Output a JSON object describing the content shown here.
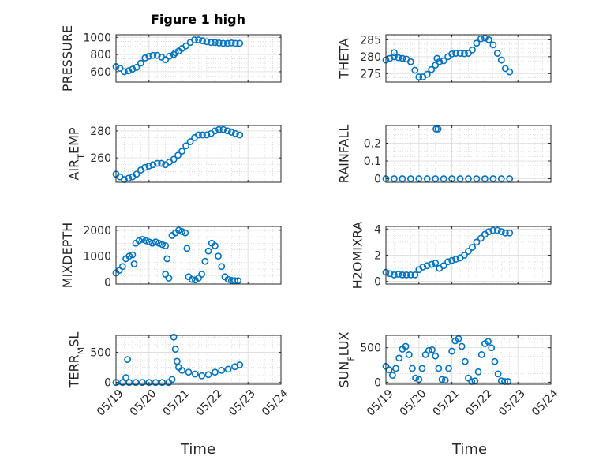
{
  "figure_title": "Figure 1 high",
  "colors": {
    "marker": "#0072BD",
    "axis": "#262626",
    "grid": "#c8c8c8"
  },
  "chart_data": [
    {
      "id": "pressure",
      "type": "scatter",
      "title": "Figure 1 high",
      "ylabel": "PRESSURE",
      "ylabel_sub": "",
      "xlim": [
        "05/19",
        "05/24"
      ],
      "ylim": [
        480,
        1030
      ],
      "yticks": [
        600,
        800,
        1000
      ],
      "yticklabels": [
        "600",
        "800",
        "1000"
      ],
      "x_days": [
        0,
        0.12,
        0.25,
        0.38,
        0.5,
        0.62,
        0.75,
        0.88,
        1.0,
        1.12,
        1.25,
        1.38,
        1.5,
        1.62,
        1.75,
        1.8,
        1.9,
        2.0,
        2.12,
        2.25,
        2.38,
        2.5,
        2.62,
        2.75,
        2.88,
        3.0,
        3.12,
        3.25,
        3.38,
        3.5,
        3.62,
        3.75
      ],
      "y": [
        660,
        640,
        600,
        610,
        630,
        650,
        700,
        760,
        780,
        790,
        790,
        770,
        740,
        780,
        800,
        820,
        840,
        870,
        900,
        940,
        970,
        970,
        960,
        950,
        940,
        940,
        935,
        930,
        930,
        935,
        930,
        930
      ]
    },
    {
      "id": "theta",
      "type": "scatter",
      "ylabel": "THETA",
      "ylabel_sub": "",
      "xlim": [
        "05/19",
        "05/24"
      ],
      "ylim": [
        272.5,
        286.5
      ],
      "yticks": [
        275,
        280,
        285
      ],
      "yticklabels": [
        "275",
        "280",
        "285"
      ],
      "x_days": [
        0,
        0.12,
        0.25,
        0.38,
        0.5,
        0.62,
        0.75,
        0.88,
        1.0,
        1.12,
        1.25,
        1.38,
        1.5,
        1.62,
        1.75,
        1.88,
        2.0,
        2.12,
        2.25,
        2.38,
        2.5,
        2.62,
        2.75,
        2.88,
        3.0,
        3.12,
        3.25,
        3.38,
        3.5,
        3.62,
        3.75
      ],
      "y": [
        279,
        279.5,
        280,
        279.7,
        279.5,
        279.3,
        278.5,
        276,
        274,
        274,
        274.8,
        276.2,
        277.5,
        278.5,
        278.8,
        280,
        280.8,
        281,
        281,
        280.9,
        281,
        282,
        284,
        285.3,
        285.5,
        285,
        283.5,
        281,
        279,
        276.5,
        275.5
      ],
      "outliers": [
        [
          0.25,
          281.2
        ],
        [
          1.55,
          279.5
        ]
      ]
    },
    {
      "id": "air_temp",
      "type": "scatter",
      "ylabel": "AIR",
      "ylabel_sub": "T",
      "ylabel_suffix": "EMP",
      "xlim": [
        "05/19",
        "05/24"
      ],
      "ylim": [
        242,
        284
      ],
      "yticks": [
        260,
        280
      ],
      "yticklabels": [
        "260",
        "280"
      ],
      "x_days": [
        0,
        0.12,
        0.25,
        0.38,
        0.5,
        0.62,
        0.75,
        0.88,
        1.0,
        1.12,
        1.25,
        1.38,
        1.5,
        1.62,
        1.75,
        1.88,
        2.0,
        2.12,
        2.25,
        2.38,
        2.5,
        2.62,
        2.75,
        2.88,
        3.0,
        3.12,
        3.25,
        3.38,
        3.5,
        3.62,
        3.75
      ],
      "y": [
        248,
        246,
        244,
        245,
        246,
        248,
        251,
        253,
        254,
        255,
        256,
        256,
        255,
        257,
        259,
        262,
        265,
        269,
        272,
        275,
        277,
        277,
        277,
        278,
        280,
        281,
        281,
        280,
        279,
        278,
        277
      ]
    },
    {
      "id": "rainfall",
      "type": "scatter",
      "ylabel": "RAINFALL",
      "ylabel_sub": "",
      "xlim": [
        "05/19",
        "05/24"
      ],
      "ylim": [
        -0.02,
        0.3
      ],
      "yticks": [
        0,
        0.1,
        0.2
      ],
      "yticklabels": [
        "0",
        "0.1",
        "0.2"
      ],
      "x_days": [
        0,
        0.25,
        0.5,
        0.75,
        1.0,
        1.25,
        1.5,
        1.75,
        2.0,
        2.25,
        2.5,
        2.75,
        3.0,
        3.25,
        3.5,
        3.75
      ],
      "y": [
        0,
        0,
        0,
        0,
        0,
        0,
        0,
        0,
        0,
        0,
        0,
        0,
        0,
        0,
        0,
        0
      ],
      "outliers": [
        [
          1.52,
          0.28
        ],
        [
          1.58,
          0.28
        ]
      ]
    },
    {
      "id": "mixdepth",
      "type": "scatter",
      "ylabel": "MIXDEPTH",
      "ylabel_sub": "",
      "xlim": [
        "05/19",
        "05/24"
      ],
      "ylim": [
        -80,
        2150
      ],
      "yticks": [
        0,
        1000,
        2000
      ],
      "yticklabels": [
        "0",
        "1000",
        "2000"
      ],
      "x_days": [
        0,
        0.1,
        0.2,
        0.3,
        0.4,
        0.5,
        0.6,
        0.7,
        0.8,
        0.9,
        1.0,
        1.1,
        1.2,
        1.3,
        1.4,
        1.5,
        1.7,
        1.8,
        1.9,
        2.0,
        2.1,
        2.2,
        2.3,
        2.4,
        2.5,
        2.6,
        2.7,
        2.8,
        2.9,
        3.0,
        3.1,
        3.2,
        3.3,
        3.4,
        3.5,
        3.6,
        3.7
      ],
      "y": [
        350,
        450,
        600,
        900,
        1000,
        1050,
        1500,
        1600,
        1650,
        1600,
        1550,
        1500,
        1550,
        1500,
        1450,
        1400,
        1800,
        1900,
        2000,
        1950,
        1900,
        200,
        100,
        80,
        150,
        300,
        800,
        1200,
        1500,
        1400,
        1000,
        600,
        200,
        100,
        60,
        50,
        50
      ],
      "outliers": [
        [
          0.55,
          700
        ],
        [
          1.5,
          300
        ],
        [
          1.6,
          150
        ],
        [
          1.55,
          900
        ],
        [
          2.15,
          1300
        ]
      ]
    },
    {
      "id": "h2omixra",
      "type": "scatter",
      "ylabel": "H2OMIXRA",
      "ylabel_sub": "",
      "xlim": [
        "05/19",
        "05/24"
      ],
      "ylim": [
        -0.2,
        4.2
      ],
      "yticks": [
        0,
        2,
        4
      ],
      "yticklabels": [
        "0",
        "2",
        "4"
      ],
      "x_days": [
        0,
        0.12,
        0.25,
        0.38,
        0.5,
        0.62,
        0.75,
        0.88,
        1.0,
        1.12,
        1.25,
        1.38,
        1.5,
        1.62,
        1.75,
        1.88,
        2.0,
        2.12,
        2.25,
        2.38,
        2.5,
        2.62,
        2.75,
        2.88,
        3.0,
        3.12,
        3.25,
        3.38,
        3.5,
        3.62,
        3.75
      ],
      "y": [
        0.7,
        0.6,
        0.5,
        0.55,
        0.5,
        0.5,
        0.5,
        0.5,
        0.9,
        1.1,
        1.2,
        1.3,
        1.4,
        1.0,
        1.2,
        1.5,
        1.6,
        1.7,
        1.8,
        2.0,
        2.3,
        2.6,
        3.0,
        3.3,
        3.6,
        3.8,
        3.9,
        3.9,
        3.8,
        3.7,
        3.7
      ]
    },
    {
      "id": "terr_msl",
      "type": "scatter",
      "ylabel": "TERR",
      "ylabel_sub": "M",
      "ylabel_suffix": "SL",
      "xlim": [
        "05/19",
        "05/24"
      ],
      "ylim": [
        -30,
        780
      ],
      "yticks": [
        0,
        500
      ],
      "yticklabels": [
        "0",
        "500"
      ],
      "xticklabels": [
        "05/19",
        "05/20",
        "05/21",
        "05/22",
        "05/23",
        "05/24"
      ],
      "xlabel": "Time",
      "x_days": [
        0,
        0.2,
        0.4,
        0.6,
        0.8,
        1.0,
        1.2,
        1.4,
        1.6,
        1.7,
        1.75,
        1.8,
        1.85,
        1.9,
        2.0,
        2.2,
        2.4,
        2.6,
        2.8,
        3.0,
        3.2,
        3.4,
        3.6,
        3.75
      ],
      "y": [
        0,
        0,
        0,
        0,
        0,
        0,
        0,
        0,
        0,
        50,
        750,
        550,
        350,
        250,
        200,
        170,
        140,
        110,
        130,
        170,
        200,
        220,
        260,
        290
      ],
      "outliers": [
        [
          0.35,
          380
        ],
        [
          0.3,
          80
        ]
      ]
    },
    {
      "id": "sun_flux",
      "type": "scatter",
      "ylabel": "SUN",
      "ylabel_sub": "F",
      "ylabel_suffix": "LUX",
      "xlim": [
        "05/19",
        "05/24"
      ],
      "ylim": [
        -30,
        680
      ],
      "yticks": [
        0,
        500
      ],
      "yticklabels": [
        "0",
        "500"
      ],
      "xticklabels": [
        "05/19",
        "05/20",
        "05/21",
        "05/22",
        "05/23",
        "05/24"
      ],
      "xlabel": "Time",
      "x_days": [
        0,
        0.1,
        0.2,
        0.3,
        0.4,
        0.5,
        0.6,
        0.7,
        0.8,
        0.9,
        1.0,
        1.1,
        1.2,
        1.3,
        1.4,
        1.5,
        1.6,
        1.7,
        1.8,
        1.9,
        2.0,
        2.1,
        2.2,
        2.3,
        2.4,
        2.5,
        2.6,
        2.7,
        2.8,
        2.9,
        3.0,
        3.1,
        3.2,
        3.3,
        3.4,
        3.5,
        3.6,
        3.7
      ],
      "y": [
        230,
        180,
        100,
        200,
        350,
        480,
        520,
        400,
        200,
        60,
        40,
        200,
        400,
        460,
        470,
        380,
        200,
        40,
        30,
        200,
        450,
        600,
        630,
        520,
        300,
        60,
        10,
        20,
        150,
        400,
        560,
        590,
        500,
        300,
        120,
        20,
        10,
        10
      ]
    }
  ]
}
